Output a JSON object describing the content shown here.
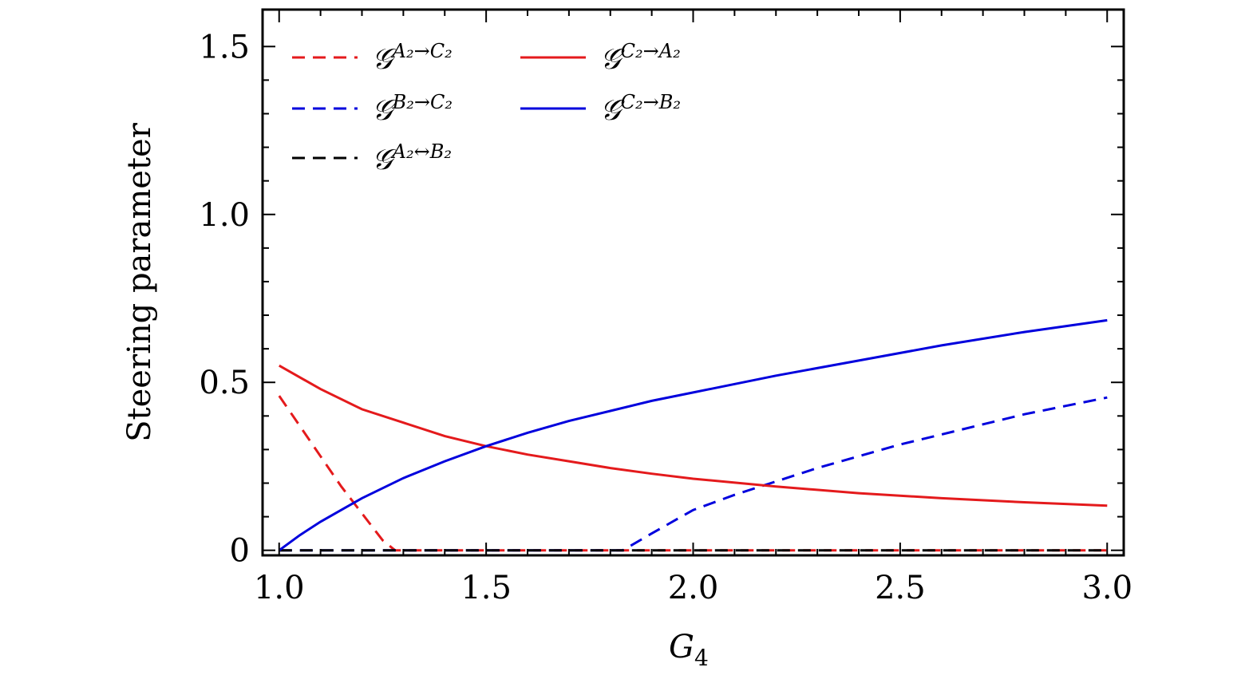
{
  "chart_data": {
    "type": "line",
    "xlabel": "G",
    "xlabel_sub": "4",
    "ylabel": "Steering parameter",
    "xlim": [
      0.96,
      3.04
    ],
    "ylim": [
      -0.015,
      1.61
    ],
    "x_ticks": [
      1.0,
      1.5,
      2.0,
      2.5,
      3.0
    ],
    "x_tick_labels": [
      "1.0",
      "1.5",
      "2.0",
      "2.5",
      "3.0"
    ],
    "y_ticks": [
      0,
      0.5,
      1.0,
      1.5
    ],
    "y_tick_labels": [
      "0",
      "0.5",
      "1.0",
      "1.5"
    ],
    "grid": false,
    "legend_position": "top-left",
    "series": [
      {
        "name": "G^{A2→C2}",
        "legend_base": "𝒢",
        "legend_sup": "A₂→C₂",
        "color": "#e41a1c",
        "style": "dashed",
        "x": [
          1.0,
          1.05,
          1.1,
          1.15,
          1.2,
          1.25,
          1.28,
          1.5,
          2.0,
          2.5,
          3.0
        ],
        "y": [
          0.46,
          0.37,
          0.28,
          0.19,
          0.11,
          0.03,
          0.0,
          0.0,
          0.0,
          0.0,
          0.0
        ]
      },
      {
        "name": "G^{B2→C2}",
        "legend_base": "𝒢",
        "legend_sup": "B₂→C₂",
        "color": "#0000dd",
        "style": "dashed",
        "x": [
          1.0,
          1.5,
          1.83,
          1.9,
          2.0,
          2.1,
          2.2,
          2.3,
          2.4,
          2.5,
          2.6,
          2.7,
          2.8,
          2.9,
          3.0
        ],
        "y": [
          0.0,
          0.0,
          0.0,
          0.05,
          0.12,
          0.165,
          0.205,
          0.245,
          0.28,
          0.315,
          0.345,
          0.375,
          0.405,
          0.43,
          0.455
        ]
      },
      {
        "name": "G^{A2↔B2}",
        "legend_base": "𝒢",
        "legend_sup": "A₂↔B₂",
        "color": "#000000",
        "style": "dashed",
        "x": [
          1.0,
          1.5,
          2.0,
          2.5,
          3.0
        ],
        "y": [
          0.0,
          0.0,
          0.0,
          0.0,
          0.0
        ]
      },
      {
        "name": "G^{C2→A2}",
        "legend_base": "𝒢",
        "legend_sup": "C₂→A₂",
        "color": "#e41a1c",
        "style": "solid",
        "x": [
          1.0,
          1.1,
          1.2,
          1.3,
          1.4,
          1.5,
          1.6,
          1.7,
          1.8,
          1.9,
          2.0,
          2.2,
          2.4,
          2.6,
          2.8,
          3.0
        ],
        "y": [
          0.55,
          0.48,
          0.42,
          0.38,
          0.34,
          0.31,
          0.285,
          0.265,
          0.245,
          0.228,
          0.213,
          0.19,
          0.17,
          0.155,
          0.143,
          0.133
        ]
      },
      {
        "name": "G^{C2→B2}",
        "legend_base": "𝒢",
        "legend_sup": "C₂→B₂",
        "color": "#0000dd",
        "style": "solid",
        "x": [
          1.0,
          1.05,
          1.1,
          1.2,
          1.3,
          1.4,
          1.5,
          1.6,
          1.7,
          1.8,
          1.9,
          2.0,
          2.2,
          2.4,
          2.6,
          2.8,
          3.0
        ],
        "y": [
          0.0,
          0.045,
          0.085,
          0.155,
          0.215,
          0.265,
          0.31,
          0.35,
          0.385,
          0.415,
          0.445,
          0.47,
          0.52,
          0.565,
          0.61,
          0.65,
          0.685
        ]
      }
    ]
  }
}
